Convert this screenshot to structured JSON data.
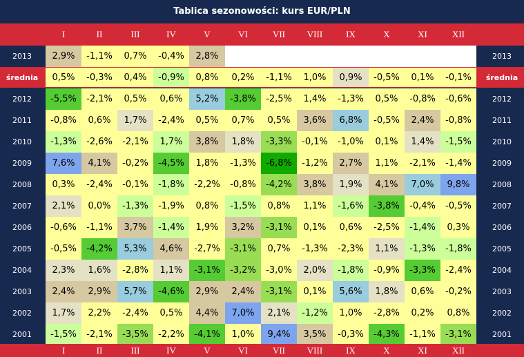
{
  "title": "Tablica sezonowości: kurs EUR/PLN",
  "months": [
    "I",
    "II",
    "III",
    "IV",
    "V",
    "VI",
    "VII",
    "VIII",
    "IX",
    "X",
    "XI",
    "XII"
  ],
  "average_label": "średnia",
  "colors": {
    "navy": "#17294f",
    "red": "#d42a38",
    "white": "#ffffff",
    "yellow": "#ffff99",
    "pale_green": "#ccff99",
    "mid_green": "#99dd55",
    "green": "#55cc33",
    "dark_green": "#11aa00",
    "pale_tan": "#e4e1c4",
    "tan": "#d6c8a0",
    "light_blue": "#99ccdd",
    "blue": "#7ea4ee"
  },
  "chart_data": {
    "type": "table",
    "title": "Tablica sezonowości: kurs EUR/PLN",
    "columns": [
      "I",
      "II",
      "III",
      "IV",
      "V",
      "VI",
      "VII",
      "VIII",
      "IX",
      "X",
      "XI",
      "XII"
    ],
    "rows": [
      {
        "label": "2013",
        "values": [
          "2,9%",
          "-1,1%",
          "0,7%",
          "-0,4%",
          "2,8%",
          "",
          "",
          "",
          "",
          "",
          "",
          ""
        ],
        "colors": [
          "tan",
          "yellow",
          "yellow",
          "yellow",
          "tan",
          "white",
          "white",
          "white",
          "white",
          "white",
          "white",
          "white"
        ]
      },
      {
        "label": "średnia",
        "values": [
          "0,5%",
          "-0,3%",
          "0,4%",
          "-0,9%",
          "0,8%",
          "0,2%",
          "-1,1%",
          "1,0%",
          "0,9%",
          "-0,5%",
          "0,1%",
          "-0,1%"
        ],
        "colors": [
          "yellow",
          "yellow",
          "yellow",
          "pale_green",
          "yellow",
          "yellow",
          "yellow",
          "yellow",
          "pale_tan",
          "yellow",
          "yellow",
          "yellow"
        ]
      },
      {
        "label": "2012",
        "values": [
          "-5,5%",
          "-2,1%",
          "0,5%",
          "0,6%",
          "5,2%",
          "-3,8%",
          "-2,5%",
          "1,4%",
          "-1,3%",
          "0,5%",
          "-0,8%",
          "-0,6%"
        ],
        "colors": [
          "green",
          "yellow",
          "yellow",
          "yellow",
          "light_blue",
          "green",
          "yellow",
          "yellow",
          "yellow",
          "yellow",
          "yellow",
          "yellow"
        ]
      },
      {
        "label": "2011",
        "values": [
          "-0,8%",
          "0,6%",
          "1,7%",
          "-2,4%",
          "0,5%",
          "0,7%",
          "0,5%",
          "3,6%",
          "6,8%",
          "-0,5%",
          "2,4%",
          "-0,8%"
        ],
        "colors": [
          "yellow",
          "yellow",
          "pale_tan",
          "yellow",
          "yellow",
          "yellow",
          "yellow",
          "tan",
          "light_blue",
          "yellow",
          "tan",
          "yellow"
        ]
      },
      {
        "label": "2010",
        "values": [
          "-1,3%",
          "-2,6%",
          "-2,1%",
          "1,7%",
          "3,8%",
          "1,8%",
          "-3,3%",
          "-0,1%",
          "-1,0%",
          "0,1%",
          "1,4%",
          "-1,5%"
        ],
        "colors": [
          "pale_green",
          "yellow",
          "yellow",
          "pale_green",
          "tan",
          "pale_tan",
          "mid_green",
          "yellow",
          "yellow",
          "yellow",
          "pale_tan",
          "pale_green"
        ]
      },
      {
        "label": "2009",
        "values": [
          "7,6%",
          "4,1%",
          "-0,2%",
          "-4,5%",
          "1,8%",
          "-1,3%",
          "-6,8%",
          "-1,2%",
          "2,7%",
          "1,1%",
          "-2,1%",
          "-1,4%"
        ],
        "colors": [
          "blue",
          "tan",
          "yellow",
          "green",
          "yellow",
          "yellow",
          "dark_green",
          "yellow",
          "tan",
          "yellow",
          "yellow",
          "yellow"
        ]
      },
      {
        "label": "2008",
        "values": [
          "0,3%",
          "-2,4%",
          "-0,1%",
          "-1,8%",
          "-2,2%",
          "-0,8%",
          "-4,2%",
          "3,8%",
          "1,9%",
          "4,1%",
          "7,0%",
          "9,8%"
        ],
        "colors": [
          "yellow",
          "yellow",
          "yellow",
          "pale_green",
          "yellow",
          "yellow",
          "mid_green",
          "tan",
          "pale_tan",
          "tan",
          "light_blue",
          "blue"
        ]
      },
      {
        "label": "2007",
        "values": [
          "2,1%",
          "0,0%",
          "-1,3%",
          "-1,9%",
          "0,8%",
          "-1,5%",
          "0,8%",
          "1,1%",
          "-1,6%",
          "-3,8%",
          "-0,4%",
          "-0,5%"
        ],
        "colors": [
          "pale_tan",
          "yellow",
          "pale_green",
          "yellow",
          "yellow",
          "pale_green",
          "yellow",
          "yellow",
          "pale_green",
          "green",
          "yellow",
          "yellow"
        ]
      },
      {
        "label": "2006",
        "values": [
          "-0,6%",
          "-1,1%",
          "3,7%",
          "-1,4%",
          "1,9%",
          "3,2%",
          "-3,1%",
          "0,1%",
          "0,6%",
          "-2,5%",
          "-1,4%",
          "0,3%"
        ],
        "colors": [
          "yellow",
          "yellow",
          "tan",
          "pale_green",
          "yellow",
          "tan",
          "mid_green",
          "yellow",
          "yellow",
          "yellow",
          "pale_green",
          "yellow"
        ]
      },
      {
        "label": "2005",
        "values": [
          "-0,5%",
          "-4,2%",
          "5,3%",
          "4,6%",
          "-2,7%",
          "-3,1%",
          "0,7%",
          "-1,3%",
          "-2,3%",
          "1,1%",
          "-1,3%",
          "-1,8%"
        ],
        "colors": [
          "yellow",
          "green",
          "light_blue",
          "tan",
          "yellow",
          "mid_green",
          "yellow",
          "yellow",
          "yellow",
          "pale_tan",
          "pale_green",
          "pale_green"
        ]
      },
      {
        "label": "2004",
        "values": [
          "2,3%",
          "1,6%",
          "-2,8%",
          "1,1%",
          "-3,1%",
          "-3,2%",
          "-3,0%",
          "2,0%",
          "-1,8%",
          "-0,9%",
          "-3,3%",
          "-2,4%"
        ],
        "colors": [
          "pale_tan",
          "pale_tan",
          "yellow",
          "pale_tan",
          "green",
          "mid_green",
          "yellow",
          "pale_tan",
          "pale_green",
          "yellow",
          "green",
          "yellow"
        ]
      },
      {
        "label": "2003",
        "values": [
          "2,4%",
          "2,9%",
          "5,7%",
          "-4,6%",
          "2,9%",
          "2,4%",
          "-3,1%",
          "0,1%",
          "5,6%",
          "1,8%",
          "0,6%",
          "-0,2%"
        ],
        "colors": [
          "tan",
          "tan",
          "light_blue",
          "green",
          "tan",
          "tan",
          "mid_green",
          "yellow",
          "light_blue",
          "pale_tan",
          "yellow",
          "yellow"
        ]
      },
      {
        "label": "2002",
        "values": [
          "1,7%",
          "2,2%",
          "-2,4%",
          "0,5%",
          "4,4%",
          "7,0%",
          "2,1%",
          "-1,2%",
          "1,0%",
          "-2,8%",
          "0,2%",
          "0,8%"
        ],
        "colors": [
          "pale_tan",
          "yellow",
          "yellow",
          "yellow",
          "tan",
          "blue",
          "pale_tan",
          "pale_green",
          "yellow",
          "yellow",
          "yellow",
          "yellow"
        ]
      },
      {
        "label": "2001",
        "values": [
          "-1,5%",
          "-2,1%",
          "-3,5%",
          "-2,2%",
          "-4,1%",
          "1,0%",
          "9,4%",
          "3,5%",
          "-0,3%",
          "-4,3%",
          "-1,1%",
          "-3,1%"
        ],
        "colors": [
          "pale_green",
          "yellow",
          "mid_green",
          "yellow",
          "green",
          "yellow",
          "blue",
          "tan",
          "yellow",
          "green",
          "yellow",
          "mid_green"
        ]
      }
    ]
  }
}
